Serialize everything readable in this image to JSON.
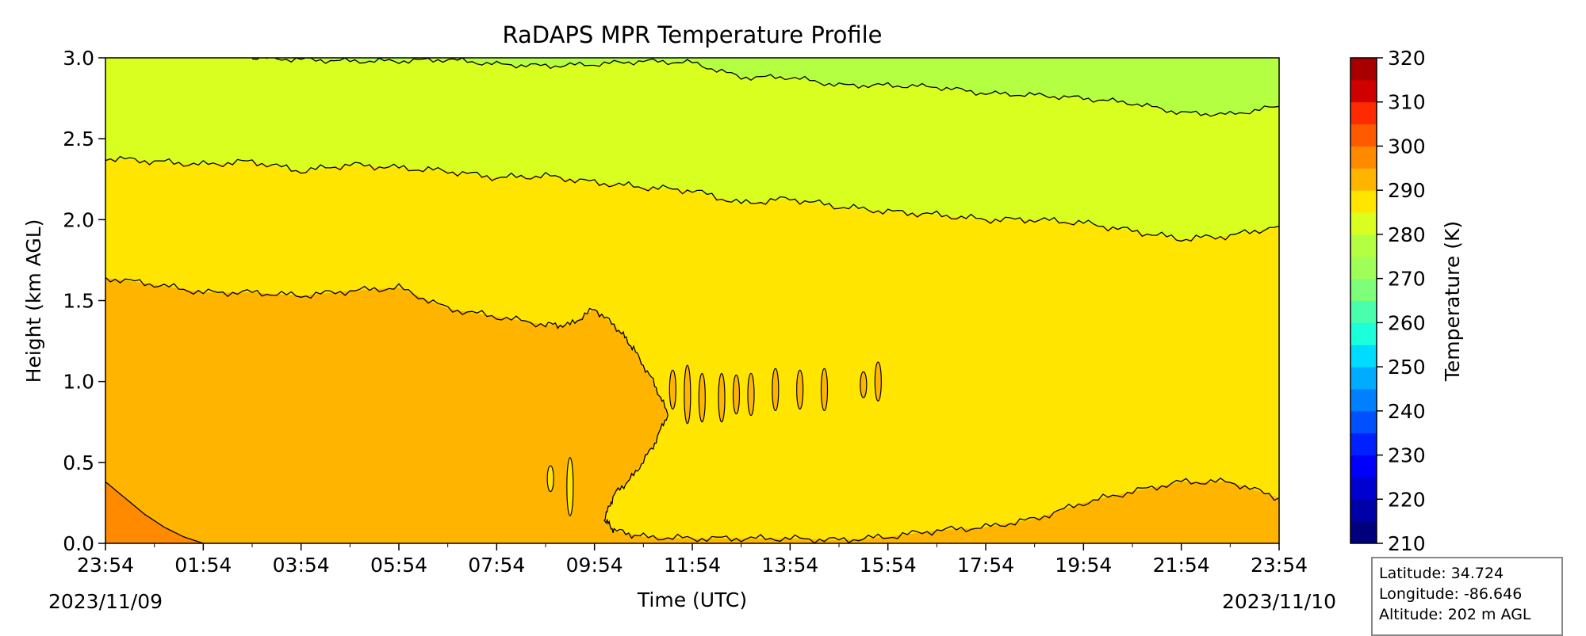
{
  "chart_data": {
    "type": "heatmap",
    "subtype": "filled-contour",
    "title": "RaDAPS MPR Temperature Profile",
    "xlabel": "Time (UTC)",
    "ylabel": "Height (km AGL)",
    "x_ticks": [
      "23:54",
      "01:54",
      "03:54",
      "05:54",
      "07:54",
      "09:54",
      "11:54",
      "13:54",
      "15:54",
      "17:54",
      "19:54",
      "21:54",
      "23:54"
    ],
    "x_start_date": "2023/11/09",
    "x_end_date": "2023/11/10",
    "ylim": [
      0.0,
      3.0
    ],
    "y_ticks": [
      "0.0",
      "0.5",
      "1.0",
      "1.5",
      "2.0",
      "2.5",
      "3.0"
    ],
    "colorbar": {
      "label": "Temperature (K)",
      "range": [
        210,
        320
      ],
      "ticks": [
        "210",
        "220",
        "230",
        "240",
        "250",
        "260",
        "270",
        "280",
        "290",
        "300",
        "310",
        "320"
      ],
      "levels": [
        210,
        215,
        220,
        225,
        230,
        235,
        240,
        245,
        250,
        255,
        260,
        265,
        270,
        275,
        280,
        285,
        290,
        295,
        300,
        305,
        310,
        315,
        320
      ],
      "colors": [
        "#00007f",
        "#0000a8",
        "#0000d1",
        "#0000fa",
        "#0020ff",
        "#0050ff",
        "#0080ff",
        "#00acff",
        "#00dcff",
        "#1cffdb",
        "#49ffad",
        "#7dff7a",
        "#a0ff56",
        "#b4ff42",
        "#d8ff1f",
        "#ffe500",
        "#ffb400",
        "#ff8a00",
        "#ff5a00",
        "#ff2b00",
        "#d10000",
        "#a80000"
      ],
      "colormap": "jet"
    },
    "bands": [
      {
        "temperature_range_K": [
          285,
          290
        ],
        "color": "#ffb400",
        "description": "lowest layer: 0 to ~1.6 km before ~10:30 UTC, below ~0.3 km after 19:00 UTC"
      },
      {
        "temperature_range_K": [
          280,
          285
        ],
        "color": "#ffe500",
        "description": "mid layer up to ~2.4 km, lowering to ~1.9 km"
      },
      {
        "temperature_range_K": [
          275,
          280
        ],
        "color": "#d8ff1f",
        "description": "upper layer"
      },
      {
        "temperature_range_K": [
          270,
          275
        ],
        "color": "#b4ff42",
        "description": "top layer near 3 km after ~11:00 UTC"
      },
      {
        "temperature_range_K": [
          290,
          295
        ],
        "color": "#ff8a00",
        "description": "surface corner near 23:54-01:30"
      }
    ],
    "contours": [
      {
        "level_K": 290,
        "x_hours": [
          0,
          0.4,
          0.8,
          1.2,
          1.6,
          2.0
        ],
        "y_km": [
          0.38,
          0.28,
          0.18,
          0.1,
          0.04,
          0.0
        ]
      },
      {
        "level_K": 285,
        "x_hours": [
          0,
          1,
          2,
          3,
          4,
          5,
          6,
          7,
          8,
          9,
          9.5,
          10,
          10.5,
          10.8,
          11.2,
          11.5,
          11.2,
          10.8,
          10.4,
          10.2,
          10.4,
          11,
          12,
          13,
          14,
          15,
          16,
          17,
          18,
          19,
          20,
          21,
          22,
          23,
          24
        ],
        "y_km": [
          1.64,
          1.6,
          1.55,
          1.55,
          1.53,
          1.56,
          1.58,
          1.45,
          1.4,
          1.35,
          1.35,
          1.45,
          1.32,
          1.2,
          1.0,
          0.8,
          0.6,
          0.42,
          0.3,
          0.15,
          0.08,
          0.04,
          0.03,
          0.03,
          0.03,
          0.02,
          0.04,
          0.08,
          0.1,
          0.15,
          0.25,
          0.32,
          0.38,
          0.38,
          0.28
        ]
      },
      {
        "level_K": 280,
        "x_hours": [
          0,
          1,
          2,
          3,
          4,
          5,
          6,
          7,
          8,
          9,
          10,
          11,
          12,
          13,
          14,
          15,
          16,
          17,
          18,
          19,
          20,
          21,
          22,
          23,
          24
        ],
        "y_km": [
          2.38,
          2.36,
          2.34,
          2.36,
          2.3,
          2.34,
          2.32,
          2.3,
          2.26,
          2.27,
          2.23,
          2.2,
          2.18,
          2.1,
          2.13,
          2.08,
          2.05,
          2.03,
          2.0,
          2.0,
          1.98,
          1.93,
          1.88,
          1.9,
          1.96
        ]
      },
      {
        "level_K": 275,
        "x_hours": [
          3,
          4,
          5,
          6,
          7,
          8,
          9,
          10,
          11,
          12,
          13,
          14,
          15,
          16,
          17,
          18,
          19,
          20,
          21,
          22,
          23,
          24
        ],
        "y_km": [
          3.0,
          2.99,
          2.98,
          2.98,
          2.99,
          2.96,
          2.95,
          2.96,
          2.98,
          2.97,
          2.88,
          2.88,
          2.83,
          2.83,
          2.82,
          2.78,
          2.77,
          2.75,
          2.72,
          2.66,
          2.65,
          2.7
        ]
      }
    ]
  },
  "info_box": {
    "latitude": "Latitude: 34.724",
    "longitude": "Longitude: -86.646",
    "altitude": "Altitude: 202 m AGL"
  }
}
